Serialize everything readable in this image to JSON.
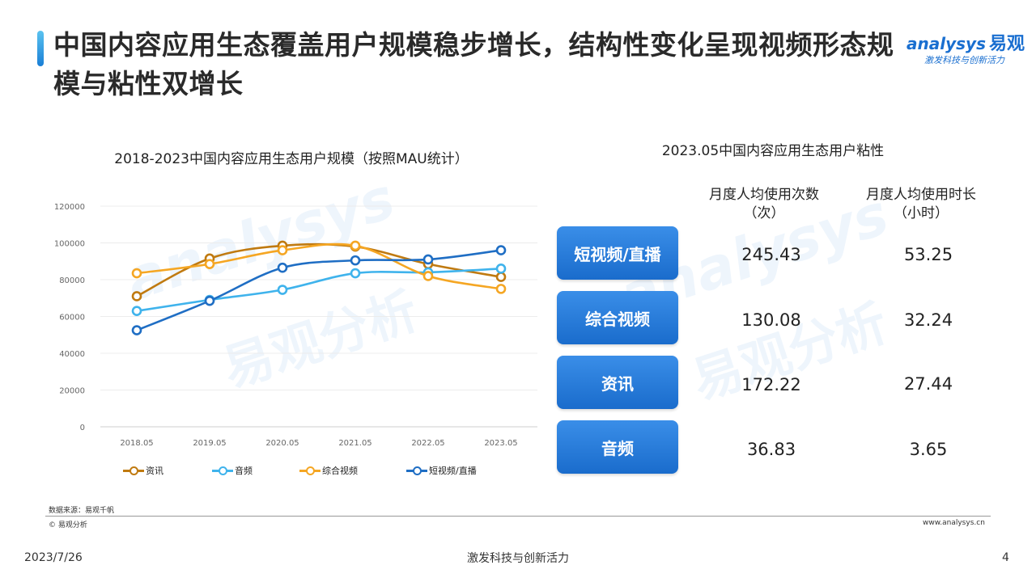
{
  "title": "中国内容应用生态覆盖用户规模稳步增长，结构性变化呈现视频形态规模与粘性双增长",
  "logo": {
    "text": "analysys",
    "cn": "易观",
    "slogan": "激发科技与创新活力"
  },
  "watermark": {
    "en": "analysys",
    "cn": "易观分析"
  },
  "colors": {
    "accent": "#1a6fd0",
    "资讯": "#c07a10",
    "音频": "#3fb3ec",
    "综合视频": "#f5a623",
    "短视频/直播": "#1f6ec4"
  },
  "chart_data": {
    "type": "line",
    "title": "2018-2023中国内容应用生态用户规模（按照MAU统计）",
    "categories": [
      "2018.05",
      "2019.05",
      "2020.05",
      "2021.05",
      "2022.05",
      "2023.05"
    ],
    "yticks": [
      "0",
      "20000",
      "40000",
      "60000",
      "80000",
      "100000",
      "120000"
    ],
    "ylim": [
      0,
      120000
    ],
    "grid": true,
    "legend_position": "bottom",
    "series": [
      {
        "name": "资讯",
        "values": [
          71000,
          91500,
          98500,
          98000,
          88500,
          81500
        ]
      },
      {
        "name": "音频",
        "values": [
          63000,
          69000,
          74500,
          83500,
          84000,
          86000
        ]
      },
      {
        "name": "综合视频",
        "values": [
          83500,
          88500,
          96000,
          98500,
          82000,
          75000
        ]
      },
      {
        "name": "短视频/直播",
        "values": [
          52500,
          68500,
          86500,
          90500,
          91000,
          96000
        ]
      }
    ]
  },
  "stickiness": {
    "title": "2023.05中国内容应用生态用户粘性",
    "col1": {
      "line1": "月度人均使用次数",
      "line2": "（次）"
    },
    "col2": {
      "line1": "月度人均使用时长",
      "line2": "（小时）"
    },
    "rows": [
      {
        "label": "短视频/直播",
        "count": "245.43",
        "hours": "53.25"
      },
      {
        "label": "综合视频",
        "count": "130.08",
        "hours": "32.24"
      },
      {
        "label": "资讯",
        "count": "172.22",
        "hours": "27.44"
      },
      {
        "label": "音频",
        "count": "36.83",
        "hours": "3.65"
      }
    ]
  },
  "source": "数据来源：易观千帆",
  "copyright": "© 易观分析",
  "website": "www.analysys.cn",
  "footer": {
    "date": "2023/7/26",
    "slogan": "激发科技与创新活力",
    "page": "4"
  }
}
